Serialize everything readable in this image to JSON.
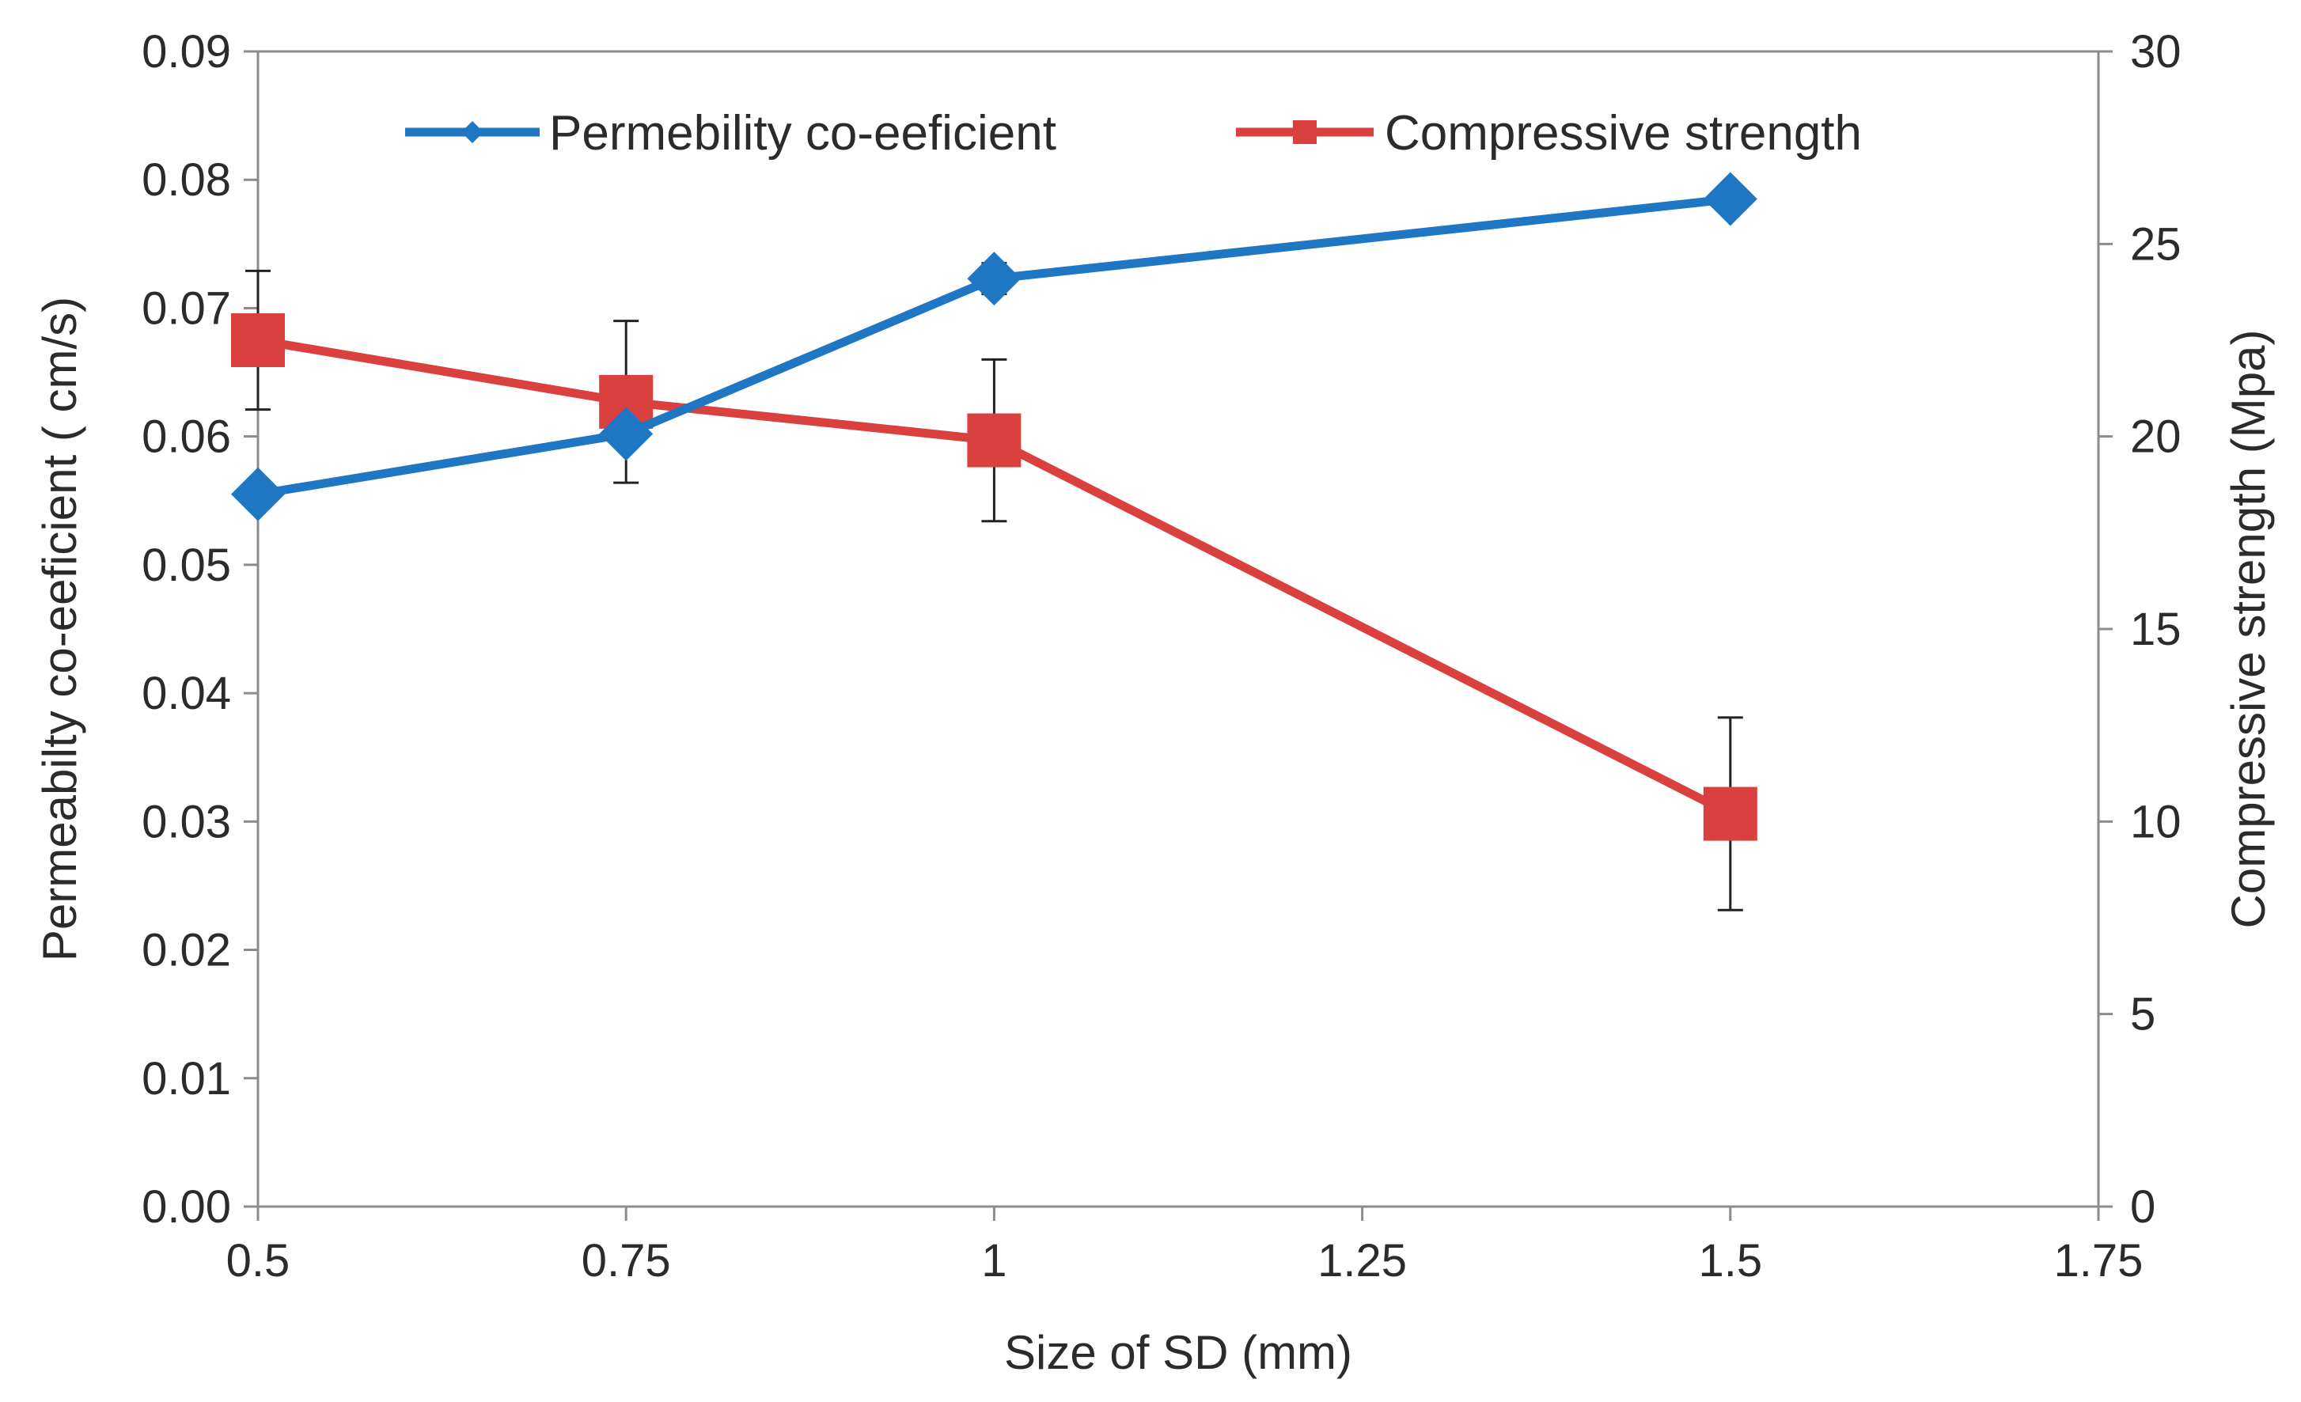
{
  "chart_data": {
    "type": "line",
    "title": "",
    "xlabel": "Size of SD (mm)",
    "ylabel_left": "Permeabilty  co-eeficient  ( cm/s)",
    "ylabel_right": "Compressive  strength  (Mpa)",
    "xlim": [
      0.5,
      1.75
    ],
    "ylim_left": [
      0,
      0.09
    ],
    "ylim_right": [
      0,
      30
    ],
    "x_ticks": [
      "0.5",
      "0.75",
      "1",
      "1.25",
      "1.5",
      "1.75"
    ],
    "x_tick_values": [
      0.5,
      0.75,
      1,
      1.25,
      1.5,
      1.75
    ],
    "y_left_ticks": [
      "0.00",
      "0.01",
      "0.02",
      "0.03",
      "0.04",
      "0.05",
      "0.06",
      "0.07",
      "0.08",
      "0.09"
    ],
    "y_left_tick_values": [
      0,
      0.01,
      0.02,
      0.03,
      0.04,
      0.05,
      0.06,
      0.07,
      0.08,
      0.09
    ],
    "y_right_ticks": [
      "0",
      "5",
      "10",
      "15",
      "20",
      "25",
      "30"
    ],
    "y_right_tick_values": [
      0,
      5,
      10,
      15,
      20,
      25,
      30
    ],
    "grid": false,
    "legend_position": "top",
    "series": [
      {
        "name": "Permebility  co-eeficient",
        "axis": "left",
        "color": "#1f77c4",
        "marker": "diamond",
        "x": [
          0.5,
          0.75,
          1,
          1.5
        ],
        "values": [
          0.0555,
          0.0602,
          0.0723,
          0.0785
        ],
        "error": [
          0,
          0,
          0.0012,
          0
        ]
      },
      {
        "name": "Compressive strength",
        "axis": "right",
        "color": "#d9403e",
        "marker": "square",
        "x": [
          0.5,
          0.75,
          1,
          1.5
        ],
        "values": [
          22.5,
          20.9,
          19.9,
          10.2
        ],
        "error": [
          1.8,
          2.1,
          2.1,
          2.5
        ]
      }
    ]
  }
}
